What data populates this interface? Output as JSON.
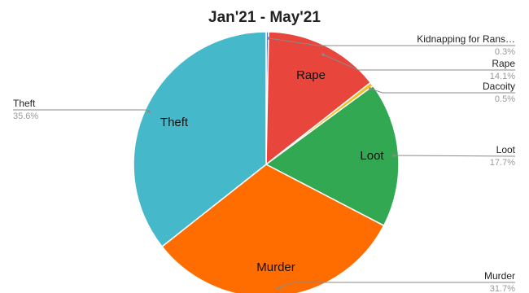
{
  "chart_data": {
    "type": "pie",
    "title": "Jan'21 - May'21",
    "slices": [
      {
        "label": "Kidnapping for Rans…",
        "inner_label": "",
        "value": 0.3,
        "pct_text": "0.3%",
        "color": "#4a7fd4"
      },
      {
        "label": "Rape",
        "inner_label": "Rape",
        "value": 14.1,
        "pct_text": "14.1%",
        "color": "#e8453c"
      },
      {
        "label": "Dacoity",
        "inner_label": "",
        "value": 0.5,
        "pct_text": "0.5%",
        "color": "#f5bd20"
      },
      {
        "label": "Loot",
        "inner_label": "Loot",
        "value": 17.7,
        "pct_text": "17.7%",
        "color": "#33a852"
      },
      {
        "label": "Murder",
        "inner_label": "Murder",
        "value": 31.7,
        "pct_text": "31.7%",
        "color": "#ff6d00"
      },
      {
        "label": "Theft",
        "inner_label": "Theft",
        "value": 35.6,
        "pct_text": "35.6%",
        "color": "#45b9c9"
      }
    ],
    "legend": "callout-labels"
  }
}
